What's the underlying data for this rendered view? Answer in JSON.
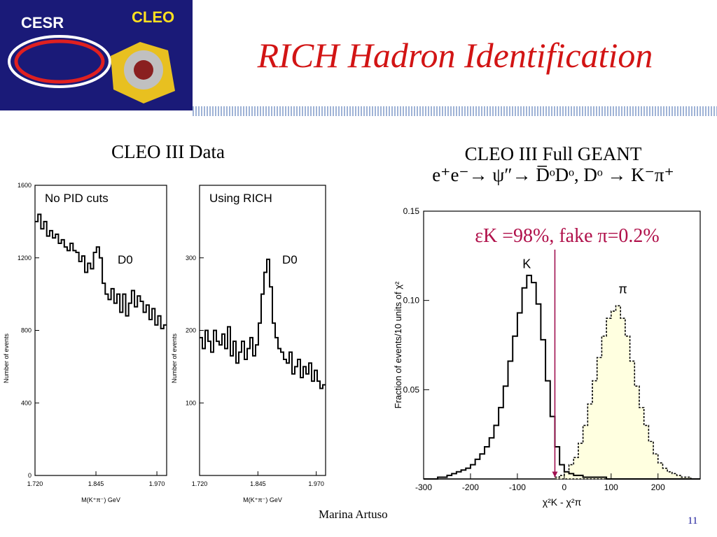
{
  "header": {
    "title": "RICH Hadron Identification",
    "logo_left_text": "CESR",
    "logo_right_text": "CLEO"
  },
  "left_caption": "CLEO III Data",
  "right_caption": {
    "line1": "CLEO III Full GEANT",
    "line2": "e⁺e⁻→ ψ″→ D̅ᵒDᵒ, Dᵒ → K⁻π⁺"
  },
  "efficiency_label": "εK =98%, fake π=0.2%",
  "footer": {
    "author": "Marina Artuso",
    "page": "11"
  },
  "chart_data": [
    {
      "type": "line",
      "title": "No PID cuts",
      "annotation": "D0",
      "xlabel": "M(K⁺π⁻) GeV",
      "ylabel": "Number of events",
      "xlim": [
        1.72,
        1.99
      ],
      "ylim": [
        0,
        1600
      ],
      "xticks": [
        "1.720",
        "1.845",
        "1.970"
      ],
      "yticks": [
        "0",
        "400",
        "800",
        "1200",
        "1600"
      ],
      "x": [
        1.72,
        1.726,
        1.732,
        1.738,
        1.744,
        1.75,
        1.756,
        1.762,
        1.768,
        1.774,
        1.78,
        1.786,
        1.792,
        1.798,
        1.804,
        1.81,
        1.816,
        1.822,
        1.828,
        1.834,
        1.84,
        1.846,
        1.852,
        1.858,
        1.864,
        1.87,
        1.876,
        1.882,
        1.888,
        1.894,
        1.9,
        1.906,
        1.912,
        1.918,
        1.924,
        1.93,
        1.936,
        1.942,
        1.948,
        1.954,
        1.96,
        1.966,
        1.972,
        1.978,
        1.984
      ],
      "values": [
        1400,
        1440,
        1360,
        1400,
        1320,
        1350,
        1310,
        1330,
        1280,
        1300,
        1260,
        1240,
        1280,
        1240,
        1230,
        1180,
        1210,
        1120,
        1170,
        1140,
        1230,
        1260,
        1200,
        1060,
        1000,
        970,
        1030,
        950,
        1000,
        900,
        1000,
        880,
        950,
        1020,
        930,
        990,
        960,
        900,
        940,
        860,
        920,
        830,
        880,
        810,
        830
      ]
    },
    {
      "type": "line",
      "title": "Using RICH",
      "annotation": "D0",
      "xlabel": "M(K⁺π⁻) GeV",
      "ylabel": "Number of events",
      "xlim": [
        1.72,
        1.99
      ],
      "ylim": [
        0,
        400
      ],
      "xticks": [
        "1.720",
        "1.845",
        "1.970"
      ],
      "yticks": [
        "100",
        "200",
        "300"
      ],
      "x": [
        1.72,
        1.726,
        1.732,
        1.738,
        1.744,
        1.75,
        1.756,
        1.762,
        1.768,
        1.774,
        1.78,
        1.786,
        1.792,
        1.798,
        1.804,
        1.81,
        1.816,
        1.822,
        1.828,
        1.834,
        1.84,
        1.846,
        1.852,
        1.858,
        1.864,
        1.87,
        1.876,
        1.882,
        1.888,
        1.894,
        1.9,
        1.906,
        1.912,
        1.918,
        1.924,
        1.93,
        1.936,
        1.942,
        1.948,
        1.954,
        1.96,
        1.966,
        1.972,
        1.978,
        1.984
      ],
      "values": [
        190,
        175,
        200,
        185,
        170,
        200,
        185,
        180,
        195,
        175,
        205,
        165,
        185,
        155,
        170,
        185,
        160,
        175,
        190,
        165,
        180,
        210,
        250,
        280,
        298,
        260,
        210,
        190,
        175,
        170,
        160,
        155,
        170,
        140,
        150,
        160,
        135,
        150,
        140,
        155,
        130,
        145,
        130,
        120,
        125
      ]
    },
    {
      "type": "area",
      "title": "",
      "xlabel": "χ²K - χ²π",
      "ylabel": "Fraction of events/10 units of χ²",
      "xlim": [
        -300,
        290
      ],
      "ylim": [
        0,
        0.15
      ],
      "xticks": [
        "-300",
        "-200",
        "-100",
        "0",
        "100",
        "200"
      ],
      "yticks": [
        "0.05",
        "0.10",
        "0.15"
      ],
      "series": [
        {
          "name": "K",
          "x": [
            -300,
            -290,
            -280,
            -270,
            -260,
            -250,
            -240,
            -230,
            -220,
            -210,
            -200,
            -190,
            -180,
            -170,
            -160,
            -150,
            -140,
            -130,
            -120,
            -110,
            -100,
            -90,
            -80,
            -70,
            -60,
            -50,
            -40,
            -30,
            -20,
            -10,
            0,
            10,
            20,
            30,
            40,
            50,
            60,
            70,
            80,
            90,
            100,
            110,
            120,
            130,
            140,
            150,
            160,
            170,
            180,
            190,
            200,
            210,
            220,
            230,
            240,
            250,
            260,
            270,
            280
          ],
          "values": [
            0,
            0,
            0,
            0.001,
            0.001,
            0.002,
            0.003,
            0.004,
            0.005,
            0.006,
            0.008,
            0.011,
            0.014,
            0.018,
            0.023,
            0.03,
            0.04,
            0.052,
            0.066,
            0.08,
            0.093,
            0.107,
            0.114,
            0.11,
            0.098,
            0.078,
            0.055,
            0.035,
            0.018,
            0.008,
            0.004,
            0.003,
            0.002,
            0.002,
            0.001,
            0.001,
            0.001,
            0.001,
            0.001,
            0,
            0,
            0,
            0,
            0,
            0,
            0,
            0,
            0,
            0,
            0,
            0,
            0,
            0,
            0,
            0,
            0,
            0,
            0,
            0
          ]
        },
        {
          "name": "π",
          "x": [
            -300,
            -290,
            -280,
            -270,
            -260,
            -250,
            -240,
            -230,
            -220,
            -210,
            -200,
            -190,
            -180,
            -170,
            -160,
            -150,
            -140,
            -130,
            -120,
            -110,
            -100,
            -90,
            -80,
            -70,
            -60,
            -50,
            -40,
            -30,
            -20,
            -10,
            0,
            10,
            20,
            30,
            40,
            50,
            60,
            70,
            80,
            90,
            100,
            110,
            120,
            130,
            140,
            150,
            160,
            170,
            180,
            190,
            200,
            210,
            220,
            230,
            240,
            250,
            260,
            270,
            280
          ],
          "values": [
            0,
            0,
            0,
            0,
            0,
            0,
            0,
            0,
            0,
            0,
            0,
            0,
            0,
            0,
            0,
            0,
            0,
            0,
            0,
            0,
            0,
            0,
            0,
            0,
            0,
            0,
            0,
            0,
            0.001,
            0.002,
            0.004,
            0.008,
            0.012,
            0.02,
            0.03,
            0.042,
            0.055,
            0.068,
            0.08,
            0.09,
            0.094,
            0.097,
            0.09,
            0.08,
            0.066,
            0.052,
            0.04,
            0.03,
            0.021,
            0.014,
            0.009,
            0.006,
            0.004,
            0.003,
            0.002,
            0.001,
            0.001,
            0,
            0
          ]
        }
      ],
      "cut_x": -20,
      "colors": {
        "pi_fill": "#ffffe0",
        "cut_line": "#a01050"
      }
    }
  ],
  "colors": {
    "title": "#d21414",
    "efficiency": "#b0104a",
    "page_number": "#1a1a9a",
    "logo_bg": "#1a1a78"
  }
}
